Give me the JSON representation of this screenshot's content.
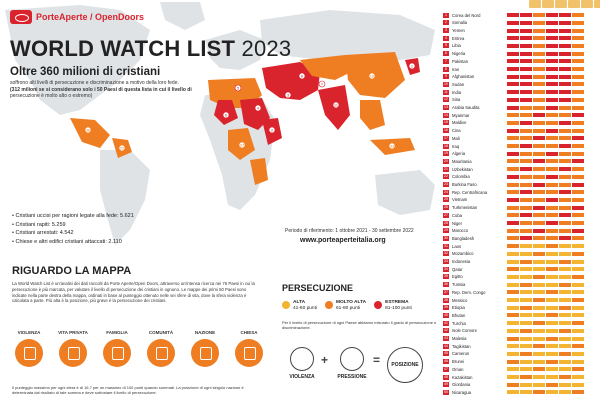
{
  "brand": {
    "name": "PorteAperte / OpenDoors"
  },
  "title": {
    "main": "WORLD WATCH LIST",
    "year": "2023"
  },
  "subtitle": "Oltre 360 milioni di cristiani",
  "subtext_lines": [
    "soffrono alti livelli di persecuzione e discriminazione a motivo della loro fede.",
    "(312 milioni se si considerano solo i 50 Paesi di questa lista in cui il livello di",
    "persecuzione è molto alto o estremo)"
  ],
  "stats": [
    "Cristiani uccisi per ragioni legate alla fede: 5.621",
    "Cristiani rapiti: 5.259",
    "Cristiani arrestati: 4.542",
    "Chiese e altri edifici cristiani attaccati: 2.110"
  ],
  "period": "Periodo di riferimento: 1 ottobre 2021 - 30 settembre 2022",
  "site_url": "www.porteaperteitalia.org",
  "map_section": {
    "heading": "RIGUARDO LA MAPPA",
    "description": "La World Watch List è un'analisi dei dati raccolti da Porte Aperte/Open Doors, attraverso un'intensa ricerca nei 76 Paesi in cui la persecuzione è più marcata, per valutare il livello di persecuzione dei cristiani in ognuno. Le mappe dei primi 50 Paesi sono indicate nella parte destra della mappa, ordinati in base al punteggio ottenuto nelle sei sfere di vita, dove la sfera violenza è calcolata a parte. Più alta è la posizione, più grave è la persecuzione dei cristiani.",
    "spheres": [
      "VIOLENZA",
      "VITA PRIVATA",
      "FAMIGLIA",
      "COMUNITÀ",
      "NAZIONE",
      "CHIESA"
    ],
    "foot_note": "Il punteggio massimo per ogni sfera è di 16,7 per un massimo di 100 punti quando sommati. La posizione di ogni singolo nazione è determinata dal risultato di tale somma e deve sottostare il livello di persecuzione."
  },
  "persecution": {
    "title": "PERSECUZIONE",
    "levels": [
      {
        "name": "ALTA",
        "range": "41-60 punti",
        "color": "#f2b431"
      },
      {
        "name": "MOLTO ALTA",
        "range": "61-80 punti",
        "color": "#ef7d22"
      },
      {
        "name": "ESTREMA",
        "range": "81-100 punti",
        "color": "#d9232d"
      }
    ],
    "note": "Per il livello di persecuzione di ogni Paese abbiamo misurato il grado di persecuzione e discriminazione."
  },
  "formula": {
    "violence": "VIOLENZA",
    "pressure": "PRESSIONE",
    "position": "POSIZIONE",
    "plus": "+",
    "equals": "="
  },
  "countries": [
    "Corea del Nord",
    "Somalia",
    "Yemen",
    "Eritrea",
    "Libia",
    "Nigeria",
    "Pakistan",
    "Iran",
    "Afghanistan",
    "Sudan",
    "India",
    "Siria",
    "Arabia Saudita",
    "Myanmar",
    "Maldive",
    "Cina",
    "Mali",
    "Iraq",
    "Algeria",
    "Mauritania",
    "Uzbekistan",
    "Colombia",
    "Burkina Faso",
    "Rep. Centrafricana",
    "Vietnam",
    "Turkmenistan",
    "Cuba",
    "Niger",
    "Marocco",
    "Bangladesh",
    "Laos",
    "Mozambico",
    "Indonesia",
    "Qatar",
    "Egitto",
    "Tunisia",
    "Rep. Dem. Congo",
    "Messico",
    "Etiopia",
    "Bhutan",
    "Turchia",
    "Isole Comore",
    "Malesia",
    "Tagikistan",
    "Camerun",
    "Brunei",
    "Oman",
    "Kazakistan",
    "Giordania",
    "Nicaragua"
  ],
  "colors": {
    "extreme": "#d9232d",
    "very_high": "#ef7d22",
    "high": "#f2b431",
    "land": "#dfe3e6"
  }
}
